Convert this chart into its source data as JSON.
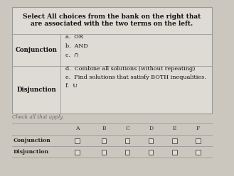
{
  "title_line1": "Select All choices from the bank on the right that",
  "title_line2": "are associated with the two terms on the left.",
  "left_terms": [
    "Conjunction",
    "Disjunction"
  ],
  "right_items_conj": [
    "a.  OR",
    "b.  AND",
    "c.  ∩"
  ],
  "right_items_disj": [
    "d.  Combine all solutions (without repeating)",
    "e.  Find solutions that satisfy BOTH inequalities.",
    "f.  U"
  ],
  "check_label": "Check all that apply.",
  "col_labels": [
    "A",
    "B",
    "C",
    "D",
    "E",
    "F"
  ],
  "row_labels": [
    "Conjunction",
    "Disjunction"
  ],
  "bg_color": "#ccc7be",
  "table_bg": "#dedad4",
  "line_color": "#999999",
  "title_fontsize": 6.5,
  "term_fontsize": 6.2,
  "item_fontsize": 5.8,
  "check_fontsize": 5.0,
  "col_fontsize": 5.5,
  "row_fontsize": 5.5
}
